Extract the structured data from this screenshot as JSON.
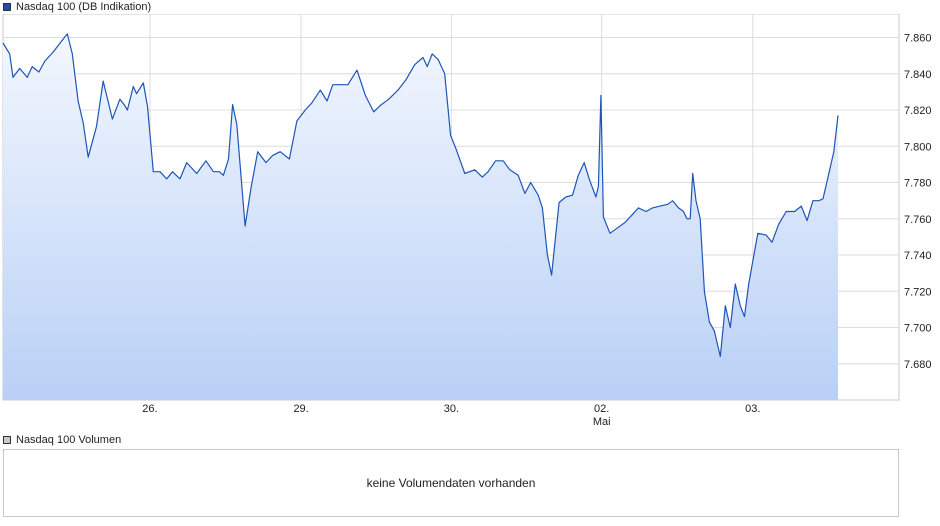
{
  "price_legend": {
    "label": "Nasdaq 100 (DB Indikation)",
    "color": "#1e4fa3"
  },
  "volume_legend": {
    "label": "Nasdaq 100 Volumen",
    "color": "#c8c8c8"
  },
  "volume_panel": {
    "message": "keine Volumendaten vorhanden"
  },
  "colors": {
    "line": "#1e55b5",
    "fill_top": "#f3f7fe",
    "fill_bottom": "#b9d0f6",
    "grid": "#dcdcdc",
    "frame": "#c8c8c8"
  },
  "chart_data": {
    "type": "area",
    "title": "",
    "xlabel": "",
    "ylabel": "",
    "ylim": [
      7660,
      7873
    ],
    "yticks": [
      7680,
      7700,
      7720,
      7740,
      7760,
      7780,
      7800,
      7820,
      7840,
      7860
    ],
    "ytick_labels": [
      "7.680",
      "7.700",
      "7.720",
      "7.740",
      "7.760",
      "7.780",
      "7.800",
      "7.820",
      "7.840",
      "7.860"
    ],
    "xlim": [
      0,
      100
    ],
    "xticks": [
      {
        "x": 17.6,
        "label": "26.",
        "sublabel": ""
      },
      {
        "x": 35.7,
        "label": "29.",
        "sublabel": ""
      },
      {
        "x": 53.7,
        "label": "30.",
        "sublabel": ""
      },
      {
        "x": 71.7,
        "label": "02.",
        "sublabel": "Mai"
      },
      {
        "x": 89.8,
        "label": "03.",
        "sublabel": ""
      }
    ],
    "grid": true,
    "series": [
      {
        "name": "Nasdaq 100 (DB Indikation)",
        "x": [
          0,
          0.8,
          1.2,
          2.0,
          2.9,
          3.5,
          4.3,
          5.0,
          6.0,
          7.0,
          7.7,
          8.3,
          9.0,
          9.6,
          10.2,
          11.2,
          12.0,
          13.1,
          14.0,
          14.5,
          14.9,
          15.6,
          16.0,
          16.8,
          17.3,
          18.0,
          18.8,
          19.6,
          20.3,
          21.2,
          22.0,
          23.2,
          24.3,
          25.2,
          25.9,
          26.4,
          27.0,
          27.5,
          28.0,
          29.0,
          29.7,
          30.5,
          31.5,
          32.3,
          33.2,
          34.3,
          35.2,
          36.2,
          37.0,
          38.0,
          38.8,
          39.5,
          40.1,
          41.3,
          42.4,
          43.4,
          44.4,
          45.3,
          46.2,
          47.3,
          48.3,
          49.3,
          50.3,
          50.8,
          51.4,
          52.1,
          52.9,
          53.6,
          54.3,
          55.3,
          56.5,
          57.4,
          58.1,
          59.0,
          59.9,
          60.7,
          61.7,
          62.5,
          63.2,
          64.1,
          64.6,
          65.2,
          65.7,
          66.6,
          67.4,
          68.2,
          68.9,
          69.6,
          70.2,
          71.0,
          71.3,
          71.5,
          71.6,
          71.9,
          72.7,
          73.6,
          74.5,
          75.3,
          76.1,
          77.0,
          77.8,
          78.7,
          79.6,
          80.2,
          80.9,
          81.5,
          81.9,
          82.3,
          82.6,
          83.0,
          83.5,
          84.0,
          84.6,
          85.2,
          85.9,
          86.5,
          87.1,
          87.7,
          88.3,
          88.8,
          89.3,
          90.4,
          91.4,
          92.1,
          92.9,
          93.8,
          94.8,
          95.6,
          96.3,
          97.0,
          97.7,
          98.2,
          98.8,
          99.5,
          100.0
        ],
        "values": [
          7857,
          7851,
          7838,
          7843,
          7838,
          7844,
          7841,
          7847,
          7852,
          7858,
          7862,
          7851,
          7825,
          7813,
          7794,
          7811,
          7836,
          7815,
          7826,
          7823,
          7820,
          7833,
          7829,
          7835,
          7822,
          7786,
          7786,
          7782,
          7786,
          7782,
          7791,
          7785,
          7792,
          7786,
          7786,
          7784,
          7793,
          7823,
          7812,
          7756,
          7777,
          7797,
          7791,
          7795,
          7797,
          7793,
          7814,
          7820,
          7824,
          7831,
          7825,
          7834,
          7834,
          7834,
          7842,
          7828,
          7819,
          7823,
          7826,
          7831,
          7837,
          7845,
          7849,
          7844,
          7851,
          7848,
          7840,
          7806,
          7798,
          7785,
          7787,
          7783,
          7786,
          7792,
          7792,
          7787,
          7784,
          7774,
          7780,
          7773,
          7766,
          7740,
          7729,
          7769,
          7772,
          7773,
          7784,
          7791,
          7782,
          7772,
          7778,
          7810,
          7828,
          7761,
          7752,
          7755,
          7758,
          7762,
          7766,
          7764,
          7766,
          7767,
          7768,
          7770,
          7766,
          7764,
          7760,
          7760,
          7785,
          7770,
          7760,
          7720,
          7703,
          7698,
          7684,
          7712,
          7700,
          7724,
          7712,
          7706,
          7724,
          7752,
          7751,
          7747,
          7757,
          7764,
          7764,
          7767,
          7759,
          7770,
          7770,
          7771,
          7783,
          7797,
          7817
        ]
      }
    ]
  }
}
